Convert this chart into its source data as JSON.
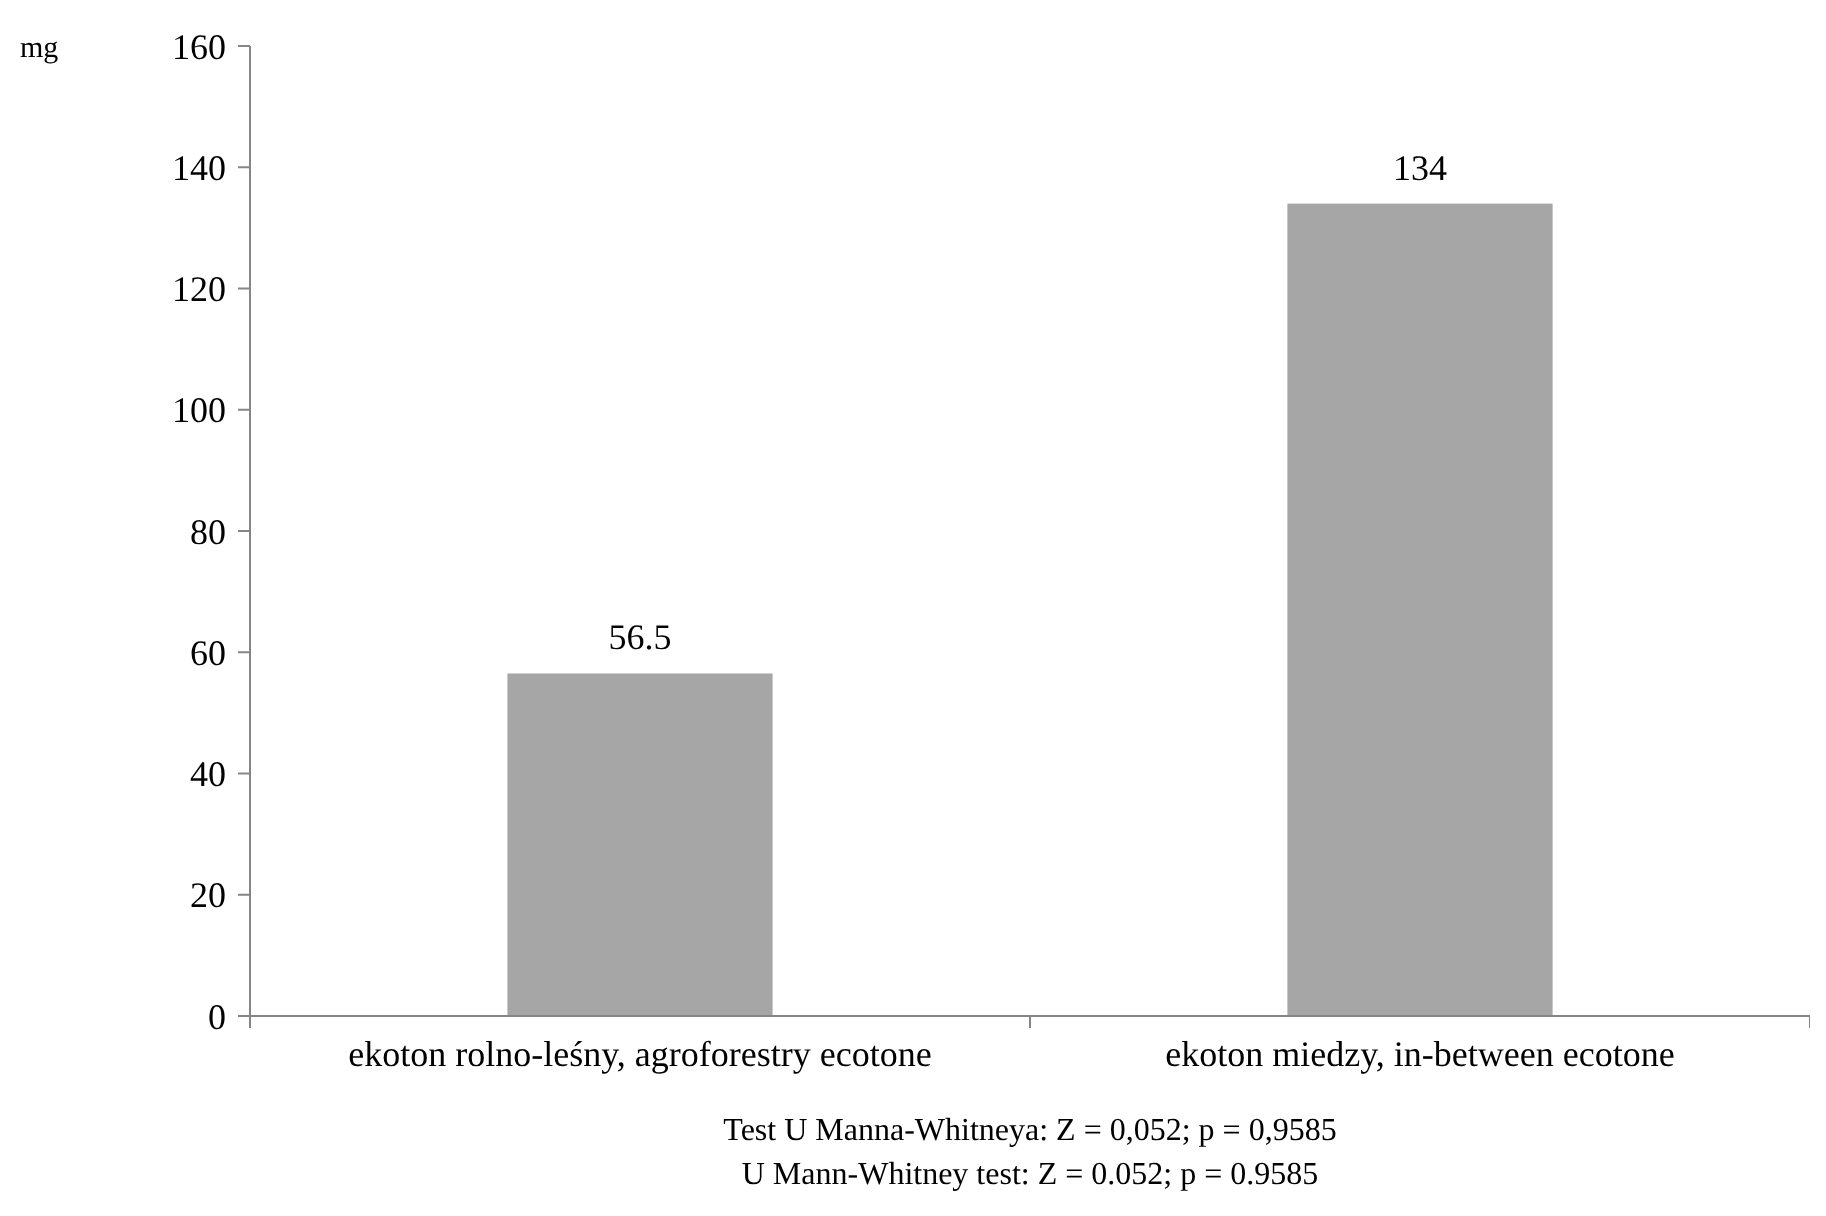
{
  "chart_data": {
    "type": "bar",
    "ylabel": "mg",
    "categories": [
      "ekoton rolno-leśny, agroforestry ecotone",
      "ekoton miedzy, in-between ecotone"
    ],
    "values": [
      56.5,
      134
    ],
    "color": "#a6a6a6",
    "ylim": [
      0,
      160
    ],
    "yticks": [
      0,
      20,
      40,
      60,
      80,
      100,
      120,
      140,
      160
    ],
    "grid": false,
    "data_labels": true,
    "annotations": [
      "Test U Manna-Whitneya: Z = 0,052; p = 0,9585",
      "U Mann-Whitney test: Z = 0.052; p = 0.9585"
    ]
  }
}
